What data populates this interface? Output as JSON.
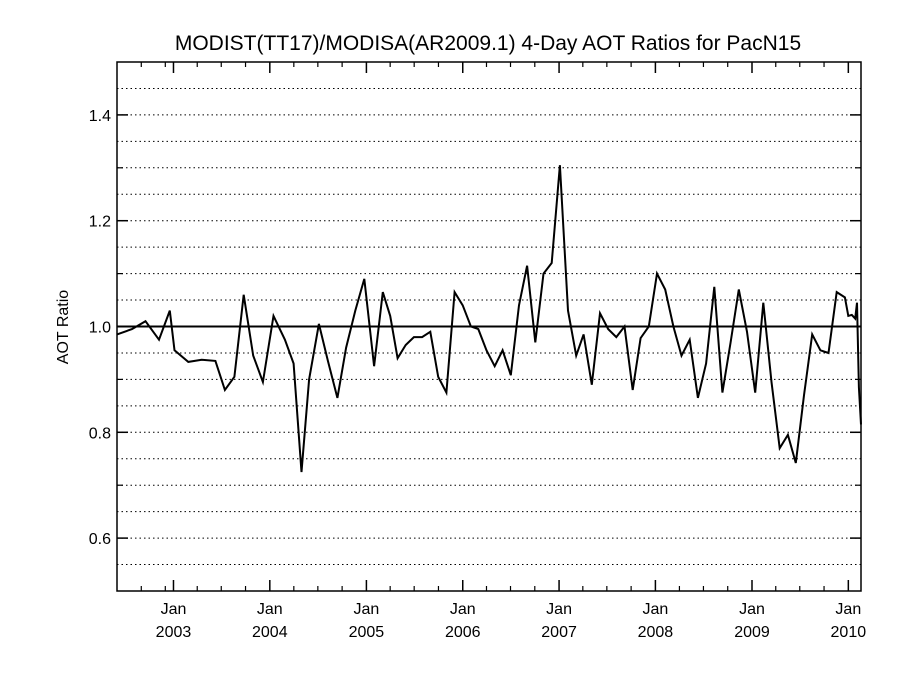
{
  "chart_data": {
    "type": "line",
    "title": "MODIST(TT17)/MODISA(AR2009.1) 4-Day AOT Ratios for PacN15",
    "xlabel": "",
    "ylabel": "AOT Ratio",
    "xlim": [
      "2002-06-01",
      "2010-02-18"
    ],
    "ylim": [
      0.5,
      1.5
    ],
    "grid": "horizontal dotted lines every 0.05",
    "reference_line": 1.0,
    "y_ticks": [
      "0.6",
      "0.8",
      "1.0",
      "1.2",
      "1.4"
    ],
    "x_ticks": [
      {
        "month": "Jan",
        "year": "2003",
        "date": "2003-01-01"
      },
      {
        "month": "Jan",
        "year": "2004",
        "date": "2004-01-01"
      },
      {
        "month": "Jan",
        "year": "2005",
        "date": "2005-01-01"
      },
      {
        "month": "Jan",
        "year": "2006",
        "date": "2006-01-01"
      },
      {
        "month": "Jan",
        "year": "2007",
        "date": "2007-01-01"
      },
      {
        "month": "Jan",
        "year": "2008",
        "date": "2008-01-01"
      },
      {
        "month": "Jan",
        "year": "2009",
        "date": "2009-01-01"
      },
      {
        "month": "Jan",
        "year": "2010",
        "date": "2010-01-01"
      }
    ],
    "series": [
      {
        "color": "#000000",
        "points": [
          [
            "2002-06-01",
            0.985
          ],
          [
            "2002-07-28",
            0.995
          ],
          [
            "2002-09-17",
            1.01
          ],
          [
            "2002-11-07",
            0.975
          ],
          [
            "2002-12-18",
            1.03
          ],
          [
            "2003-01-05",
            0.955
          ],
          [
            "2003-02-26",
            0.933
          ],
          [
            "2003-04-18",
            0.937
          ],
          [
            "2003-06-09",
            0.935
          ],
          [
            "2003-07-15",
            0.88
          ],
          [
            "2003-08-20",
            0.905
          ],
          [
            "2003-09-24",
            1.06
          ],
          [
            "2003-10-30",
            0.945
          ],
          [
            "2003-12-06",
            0.895
          ],
          [
            "2004-01-15",
            1.02
          ],
          [
            "2004-02-27",
            0.975
          ],
          [
            "2004-03-31",
            0.93
          ],
          [
            "2004-04-30",
            0.725
          ],
          [
            "2004-05-29",
            0.9
          ],
          [
            "2004-07-05",
            1.005
          ],
          [
            "2004-08-08",
            0.935
          ],
          [
            "2004-09-13",
            0.865
          ],
          [
            "2004-10-16",
            0.96
          ],
          [
            "2004-11-20",
            1.03
          ],
          [
            "2004-12-24",
            1.09
          ],
          [
            "2005-01-30",
            0.925
          ],
          [
            "2005-03-04",
            1.065
          ],
          [
            "2005-04-01",
            1.02
          ],
          [
            "2005-04-29",
            0.94
          ],
          [
            "2005-05-30",
            0.965
          ],
          [
            "2005-06-30",
            0.98
          ],
          [
            "2005-07-31",
            0.98
          ],
          [
            "2005-08-31",
            0.99
          ],
          [
            "2005-09-30",
            0.905
          ],
          [
            "2005-10-31",
            0.875
          ],
          [
            "2005-12-01",
            1.065
          ],
          [
            "2006-01-01",
            1.04
          ],
          [
            "2006-02-01",
            1.0
          ],
          [
            "2006-03-01",
            0.995
          ],
          [
            "2006-04-01",
            0.955
          ],
          [
            "2006-05-02",
            0.925
          ],
          [
            "2006-06-01",
            0.955
          ],
          [
            "2006-07-02",
            0.908
          ],
          [
            "2006-08-02",
            1.04
          ],
          [
            "2006-09-02",
            1.115
          ],
          [
            "2006-10-03",
            0.97
          ],
          [
            "2006-11-03",
            1.1
          ],
          [
            "2006-12-04",
            1.12
          ],
          [
            "2007-01-04",
            1.305
          ],
          [
            "2007-02-04",
            1.03
          ],
          [
            "2007-03-07",
            0.945
          ],
          [
            "2007-04-04",
            0.985
          ],
          [
            "2007-05-05",
            0.89
          ],
          [
            "2007-06-05",
            1.025
          ],
          [
            "2007-07-06",
            0.995
          ],
          [
            "2007-08-06",
            0.98
          ],
          [
            "2007-09-06",
            1.0
          ],
          [
            "2007-10-07",
            0.88
          ],
          [
            "2007-11-06",
            0.978
          ],
          [
            "2007-12-07",
            1.0
          ],
          [
            "2008-01-07",
            1.1
          ],
          [
            "2008-02-07",
            1.07
          ],
          [
            "2008-03-09",
            1.0
          ],
          [
            "2008-04-09",
            0.945
          ],
          [
            "2008-05-10",
            0.975
          ],
          [
            "2008-06-10",
            0.865
          ],
          [
            "2008-07-11",
            0.93
          ],
          [
            "2008-08-11",
            1.075
          ],
          [
            "2008-09-11",
            0.875
          ],
          [
            "2008-10-12",
            0.97
          ],
          [
            "2008-11-12",
            1.07
          ],
          [
            "2008-12-13",
            0.99
          ],
          [
            "2009-01-13",
            0.875
          ],
          [
            "2009-02-13",
            1.045
          ],
          [
            "2009-03-16",
            0.895
          ],
          [
            "2009-04-16",
            0.77
          ],
          [
            "2009-05-17",
            0.795
          ],
          [
            "2009-06-16",
            0.742
          ],
          [
            "2009-07-17",
            0.87
          ],
          [
            "2009-08-17",
            0.985
          ],
          [
            "2009-09-17",
            0.955
          ],
          [
            "2009-10-18",
            0.95
          ],
          [
            "2009-11-18",
            1.065
          ],
          [
            "2009-12-19",
            1.055
          ],
          [
            "2010-01-01",
            1.02
          ],
          [
            "2010-01-14",
            1.022
          ],
          [
            "2010-01-27",
            1.015
          ],
          [
            "2010-02-03",
            1.045
          ],
          [
            "2010-02-10",
            0.885
          ],
          [
            "2010-02-18",
            0.815
          ]
        ]
      }
    ]
  }
}
